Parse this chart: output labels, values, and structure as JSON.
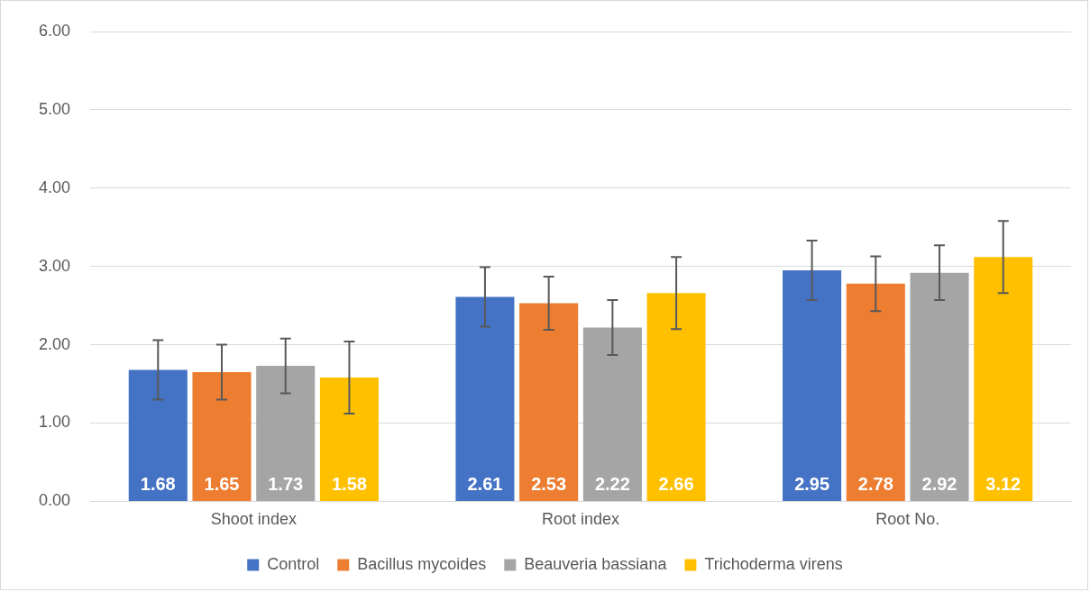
{
  "chart_data": {
    "type": "bar",
    "categories": [
      "Shoot index",
      "Root index",
      "Root No."
    ],
    "series": [
      {
        "name": "Control",
        "color": "#4472c4",
        "values": [
          1.68,
          2.61,
          2.95
        ],
        "errors": [
          0.38,
          0.38,
          0.38
        ]
      },
      {
        "name": "Bacillus mycoides",
        "color": "#ed7d31",
        "values": [
          1.65,
          2.53,
          2.78
        ],
        "errors": [
          0.35,
          0.34,
          0.35
        ]
      },
      {
        "name": "Beauveria bassiana",
        "color": "#a5a5a5",
        "values": [
          1.73,
          2.22,
          2.92
        ],
        "errors": [
          0.35,
          0.35,
          0.35
        ]
      },
      {
        "name": "Trichoderma virens",
        "color": "#ffc000",
        "values": [
          1.58,
          2.66,
          3.12
        ],
        "errors": [
          0.46,
          0.46,
          0.46
        ]
      }
    ],
    "ylim": [
      0,
      6
    ],
    "yticks": [
      {
        "value": 0,
        "label": "0.00"
      },
      {
        "value": 1,
        "label": "1.00"
      },
      {
        "value": 2,
        "label": "2.00"
      },
      {
        "value": 3,
        "label": "3.00"
      },
      {
        "value": 4,
        "label": "4.00"
      },
      {
        "value": 5,
        "label": "5.00"
      },
      {
        "value": 6,
        "label": "6.00"
      }
    ],
    "grid": "y",
    "legend": "bottom",
    "data_labels": true
  }
}
